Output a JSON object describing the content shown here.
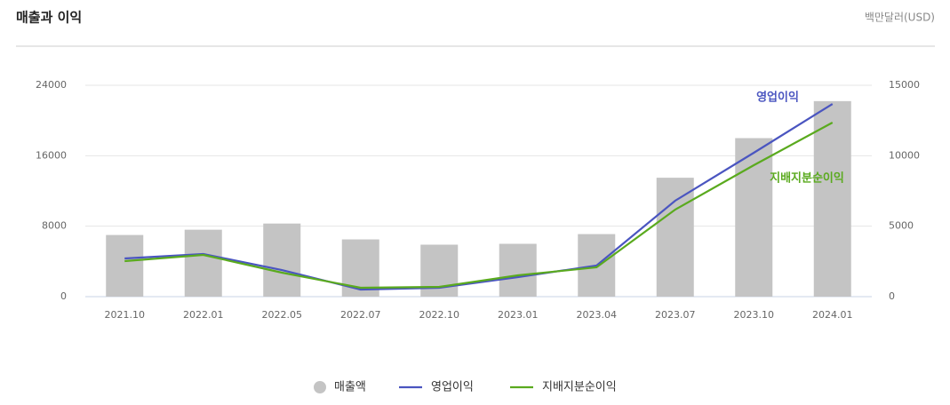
{
  "chart_data": {
    "type": "combo",
    "title": "매출과 이익",
    "unit_label": "백만달러(USD)",
    "categories": [
      "2021.10",
      "2022.01",
      "2022.05",
      "2022.07",
      "2022.10",
      "2023.01",
      "2023.04",
      "2023.07",
      "2023.10",
      "2024.01"
    ],
    "series": [
      {
        "name": "매출액",
        "mark": "bar",
        "axis": "y",
        "color": "#c4c4c4",
        "values": [
          7000,
          7600,
          8300,
          6500,
          5900,
          6000,
          7100,
          13500,
          18000,
          22200
        ]
      },
      {
        "name": "영업이익",
        "mark": "line",
        "axis": "y2",
        "color": "#4a55c0",
        "values": [
          2710,
          3025,
          1890,
          504,
          630,
          1387,
          2206,
          6807,
          10210,
          13676
        ]
      },
      {
        "name": "지배지분순이익",
        "mark": "line",
        "axis": "y2",
        "color": "#5aaa1e",
        "values": [
          2521,
          2962,
          1702,
          630,
          693,
          1513,
          2080,
          6176,
          9328,
          12353
        ]
      }
    ],
    "ylim": [
      0,
      24000
    ],
    "yticks": [
      0,
      8000,
      16000,
      24000
    ],
    "y2lim": [
      0,
      15000
    ],
    "y2ticks": [
      0,
      5000,
      10000,
      15000
    ],
    "grid": true
  }
}
